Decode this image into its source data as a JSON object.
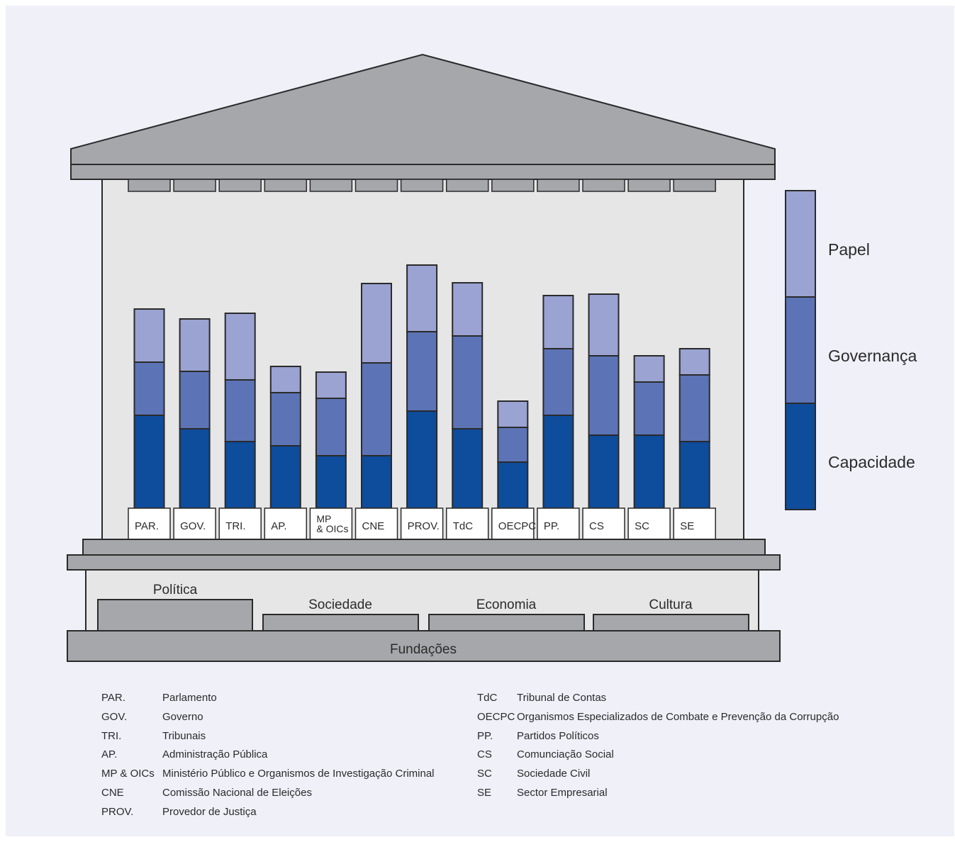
{
  "colors": {
    "papel": "#9aa3d1",
    "governanca": "#5c74b6",
    "capacidade": "#0e4c9c",
    "roof": "#a6a7ab",
    "wall": "#e6e6e7",
    "stroke": "#2a2a2a"
  },
  "chart_data": {
    "type": "bar",
    "stacked": true,
    "categories": [
      "PAR.",
      "GOV.",
      "TRI.",
      "AP.",
      "MP & OICs",
      "CNE",
      "PROV.",
      "TdC",
      "OECPC",
      "PP.",
      "CS",
      "SC",
      "SE"
    ],
    "series": [
      {
        "name": "Capacidade",
        "values": [
          131,
          112,
          94,
          88,
          74,
          74,
          137,
          112,
          65,
          131,
          103,
          103,
          94
        ]
      },
      {
        "name": "Governança",
        "values": [
          75,
          81,
          87,
          75,
          81,
          131,
          112,
          131,
          49,
          94,
          112,
          75,
          94
        ]
      },
      {
        "name": "Papel",
        "values": [
          75,
          74,
          94,
          37,
          37,
          112,
          94,
          75,
          37,
          75,
          87,
          37,
          37
        ]
      }
    ],
    "legend": [
      "Papel",
      "Governança",
      "Capacidade"
    ],
    "legend_position": "right",
    "grid": false
  },
  "foundations": {
    "pillars": [
      "Política",
      "Sociedade",
      "Economia",
      "Cultura"
    ],
    "base_label": "Fundações"
  },
  "abbreviations": {
    "left": [
      {
        "abbr": "PAR.",
        "full": "Parlamento"
      },
      {
        "abbr": "GOV.",
        "full": "Governo"
      },
      {
        "abbr": "TRI.",
        "full": "Tribunais"
      },
      {
        "abbr": "AP.",
        "full": "Administração Pública"
      },
      {
        "abbr": "MP & OICs",
        "full": "Ministério Público e Organismos de Investigação Criminal"
      },
      {
        "abbr": "CNE",
        "full": "Comissão Nacional de Eleições"
      },
      {
        "abbr": "PROV.",
        "full": "Provedor de Justiça"
      }
    ],
    "right": [
      {
        "abbr": "TdC",
        "full": "Tribunal de Contas"
      },
      {
        "abbr": "OECPC",
        "full": "Organismos Especializados de Combate e Prevenção da Corrupção"
      },
      {
        "abbr": "PP.",
        "full": "Partidos Políticos"
      },
      {
        "abbr": "CS",
        "full": "Comunciação Social"
      },
      {
        "abbr": "SC",
        "full": "Sociedade Civil"
      },
      {
        "abbr": "SE",
        "full": "Sector Empresarial"
      }
    ]
  }
}
